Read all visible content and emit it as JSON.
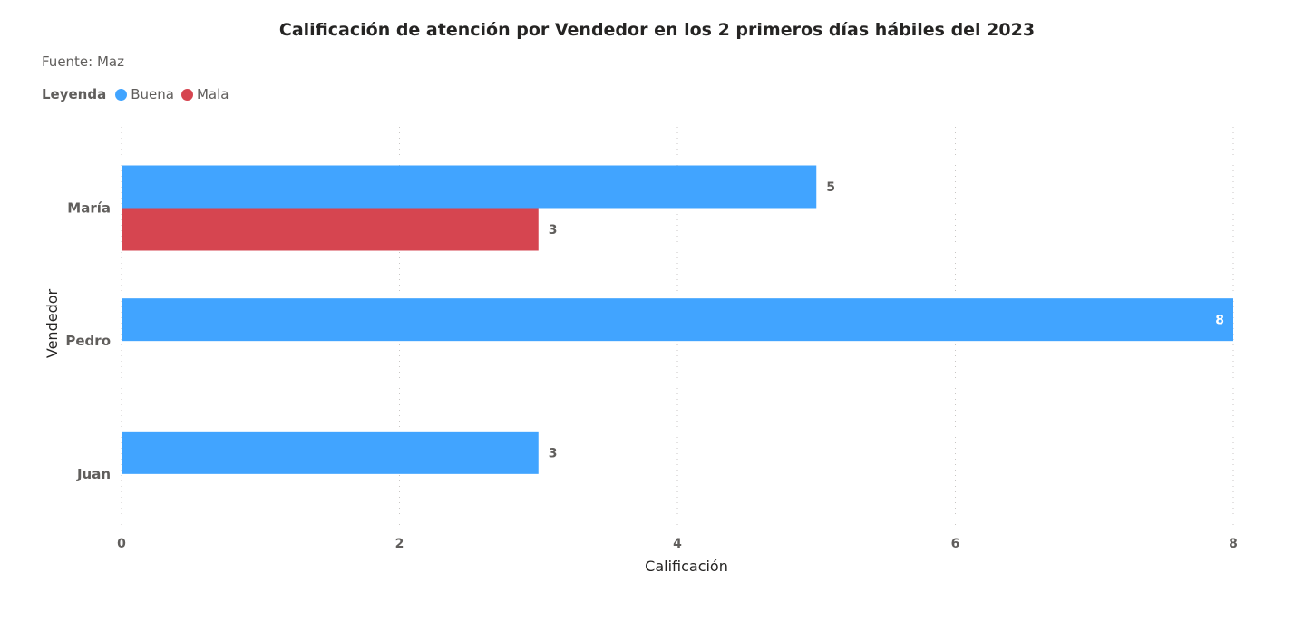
{
  "chart_data": {
    "type": "bar",
    "orientation": "horizontal",
    "title": "Calificación de atención por Vendedor en los 2 primeros días hábiles del 2023",
    "subtitle": "Fuente: Maz",
    "legend_title": "Leyenda",
    "legend_position": "top-left",
    "xlabel": "Calificación",
    "ylabel": "Vendedor",
    "xlim": [
      0,
      8
    ],
    "xticks": [
      "0",
      "2",
      "4",
      "6",
      "8"
    ],
    "grid": true,
    "categories": [
      "María",
      "Pedro",
      "Juan"
    ],
    "series": [
      {
        "name": "Buena",
        "color": "#41a4ff",
        "values": [
          5,
          8,
          3
        ]
      },
      {
        "name": "Mala",
        "color": "#d64550",
        "values": [
          3,
          null,
          null
        ]
      }
    ]
  }
}
